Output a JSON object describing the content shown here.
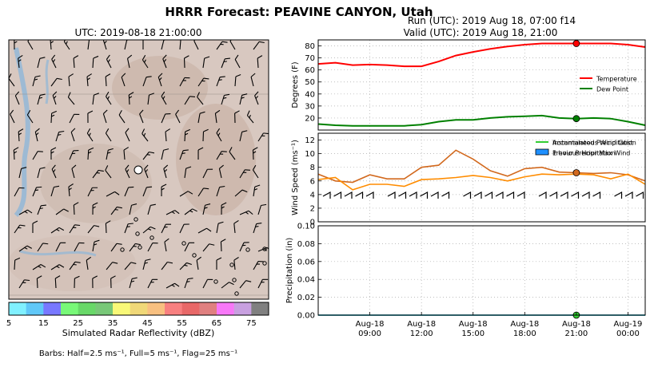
{
  "figure": {
    "title": "HRRR Forecast: PEAVINE CANYON, Utah",
    "run_line": "Run (UTC): 2019 Aug 18, 07:00 f14",
    "valid_line": "Valid (UTC): 2019 Aug 18, 21:00"
  },
  "map": {
    "title": "UTC: 2019-08-18 21:00:00",
    "colorbar": {
      "label": "Simulated Radar Reflectivity (dBZ)",
      "ticks": [
        "5",
        "15",
        "25",
        "35",
        "45",
        "55",
        "65",
        "75"
      ],
      "colors": [
        "#80f0ff",
        "#60c8f8",
        "#7878ff",
        "#78f878",
        "#68d868",
        "#78c878",
        "#f8f878",
        "#f0d878",
        "#f8c080",
        "#f88080",
        "#e86868",
        "#e08080",
        "#f878f8",
        "#c8a0e0",
        "#808080"
      ]
    },
    "barbs_note": "Barbs: Half=2.5 ms⁻¹, Full=5 ms⁻¹, Flag=25 ms⁻¹"
  },
  "chart_data": [
    {
      "type": "line",
      "ylabel": "Degrees (F)",
      "ylim": [
        10,
        85
      ],
      "yticks": [
        "20",
        "30",
        "40",
        "50",
        "60",
        "70",
        "80"
      ],
      "x": [
        "06:00",
        "07:00",
        "08:00",
        "09:00",
        "10:00",
        "11:00",
        "12:00",
        "13:00",
        "14:00",
        "15:00",
        "16:00",
        "17:00",
        "18:00",
        "19:00",
        "20:00",
        "21:00",
        "22:00",
        "23:00",
        "00:00",
        "01:00"
      ],
      "series": [
        {
          "name": "Temperature",
          "color": "#ff0000",
          "values": [
            65,
            66,
            64,
            64.5,
            64,
            63,
            63,
            67,
            72,
            75,
            77.5,
            79.5,
            81,
            82,
            82,
            82,
            82,
            82,
            81,
            79
          ]
        },
        {
          "name": "Dew Point",
          "color": "#008000",
          "values": [
            15,
            14,
            13.5,
            13.5,
            13.5,
            13.5,
            14.5,
            17,
            18.5,
            18.5,
            20,
            21,
            21.5,
            22,
            20,
            19.5,
            20,
            19.5,
            17,
            14
          ]
        }
      ],
      "marker": {
        "x": "21:00",
        "values": [
          82,
          19.5
        ]
      },
      "legend": "right",
      "grid": true
    },
    {
      "type": "line",
      "ylabel": "Wind Speed (ms⁻¹)",
      "ylim": [
        0,
        13
      ],
      "yticks": [
        "0",
        "2",
        "4",
        "6",
        "8",
        "10",
        "12"
      ],
      "x": [
        "06:00",
        "07:00",
        "08:00",
        "09:00",
        "10:00",
        "11:00",
        "12:00",
        "13:00",
        "14:00",
        "15:00",
        "16:00",
        "17:00",
        "18:00",
        "19:00",
        "20:00",
        "21:00",
        "22:00",
        "23:00",
        "00:00",
        "01:00"
      ],
      "series": [
        {
          "name": "Instantaneous Wind Gust",
          "color": "#d2691e",
          "values": [
            7.0,
            6.0,
            5.8,
            6.9,
            6.3,
            6.3,
            8.0,
            8.3,
            10.5,
            9.2,
            7.5,
            6.7,
            7.8,
            8.0,
            7.3,
            7.2,
            7.1,
            7.2,
            6.9,
            6.0
          ]
        },
        {
          "name": "Previous Hour Max Wind",
          "color": "#ff8c00",
          "values": [
            6.2,
            6.5,
            4.7,
            5.5,
            5.5,
            5.2,
            6.2,
            6.3,
            6.5,
            6.8,
            6.5,
            6.0,
            6.6,
            7.0,
            6.9,
            7.0,
            6.9,
            6.3,
            7.0,
            5.5
          ]
        }
      ],
      "marker": {
        "x": "21:00",
        "values": [
          7.2
        ]
      },
      "legend": "top-right",
      "grid": true
    },
    {
      "type": "line",
      "ylabel": "Precipitation (in)",
      "ylim": [
        0,
        0.1
      ],
      "yticks": [
        "0.00",
        "0.02",
        "0.04",
        "0.06",
        "0.08",
        "0.10"
      ],
      "x": [
        "06:00",
        "07:00",
        "08:00",
        "09:00",
        "10:00",
        "11:00",
        "12:00",
        "13:00",
        "14:00",
        "15:00",
        "16:00",
        "17:00",
        "18:00",
        "19:00",
        "20:00",
        "21:00",
        "22:00",
        "23:00",
        "00:00",
        "01:00"
      ],
      "series": [
        {
          "name": "Accumulated Precipitation",
          "color": "#32cd32",
          "values": [
            0,
            0,
            0,
            0,
            0,
            0,
            0,
            0,
            0,
            0,
            0,
            0,
            0,
            0,
            0,
            0,
            0,
            0,
            0,
            0
          ]
        },
        {
          "name": "1 hour Precipitation",
          "color": "#1e90ff",
          "values": [
            0,
            0,
            0,
            0,
            0,
            0,
            0,
            0,
            0,
            0,
            0,
            0,
            0,
            0,
            0,
            0,
            0,
            0,
            0,
            0
          ]
        }
      ],
      "marker": {
        "x": "21:00",
        "values": [
          0
        ]
      },
      "legend": "top-right",
      "grid": true,
      "xtick_labels": [
        {
          "x": "09:00",
          "date": "Aug-18",
          "time": "09:00"
        },
        {
          "x": "12:00",
          "date": "Aug-18",
          "time": "12:00"
        },
        {
          "x": "15:00",
          "date": "Aug-18",
          "time": "15:00"
        },
        {
          "x": "18:00",
          "date": "Aug-18",
          "time": "18:00"
        },
        {
          "x": "21:00",
          "date": "Aug-18",
          "time": "21:00"
        },
        {
          "x": "00:00",
          "date": "Aug-19",
          "time": "00:00"
        }
      ]
    }
  ]
}
